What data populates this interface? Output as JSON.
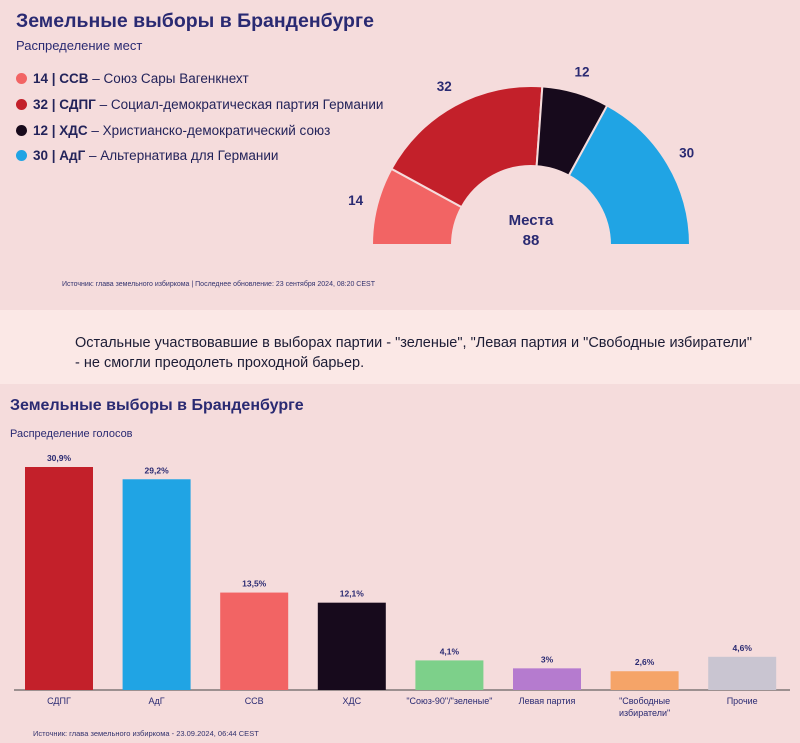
{
  "seats": {
    "title": "Земельные выборы в Бранденбурге",
    "subtitle": "Распределение мест",
    "center_label": "Места",
    "total": "88",
    "legend": [
      {
        "count": "14",
        "abbr": "ССВ",
        "name": "Союз Сары Вагенкнехт",
        "color": "#f26464"
      },
      {
        "count": "32",
        "abbr": "СДПГ",
        "name": "Социал-демократическая партия Германии",
        "color": "#c3202a"
      },
      {
        "count": "12",
        "abbr": "ХДС",
        "name": "Христианско-демократический союз",
        "color": "#170a1c"
      },
      {
        "count": "30",
        "abbr": "АдГ",
        "name": "Альтернатива для Германии",
        "color": "#20a4e4"
      }
    ],
    "source": "Источник: глава земельного избиркома | Последнее обновление: 23 сентября 2024, 08:20 CEST"
  },
  "note": "Остальные участвовавшие в выборах партии - \"зеленые\", \"Левая партия и \"Свободные избиратели\" - не смогли преодолеть проходной барьер.",
  "votes": {
    "title": "Земельные выборы в Бранденбурге",
    "subtitle": "Распределение голосов",
    "source": "Источник: глава земельного избиркома - 23.09.2024, 06:44 CEST"
  },
  "chart_data": [
    {
      "type": "pie",
      "variant": "half-donut (parliament)",
      "title": "Земельные выборы в Бранденбурге",
      "subtitle": "Распределение мест",
      "categories": [
        "ССВ",
        "СДПГ",
        "ХДС",
        "АдГ"
      ],
      "values": [
        14,
        32,
        12,
        30
      ],
      "labels": [
        "14",
        "32",
        "12",
        "30"
      ],
      "colors": [
        "#f26464",
        "#c3202a",
        "#170a1c",
        "#20a4e4"
      ],
      "center_text": [
        "Места",
        "88"
      ],
      "legend": "top-left"
    },
    {
      "type": "bar",
      "title": "Земельные выборы в Бранденбурге",
      "subtitle": "Распределение голосов",
      "categories": [
        "СДПГ",
        "АдГ",
        "ССВ",
        "ХДС",
        "\"Союз-90\"/\"зеленые\"",
        "Левая партия",
        "\"Свободные избиратели\"",
        "Прочие"
      ],
      "values": [
        30.9,
        29.2,
        13.5,
        12.1,
        4.1,
        3,
        2.6,
        4.6
      ],
      "labels": [
        "30,9%",
        "29,2%",
        "13,5%",
        "12,1%",
        "4,1%",
        "3%",
        "2,6%",
        "4,6%"
      ],
      "colors": [
        "#c3202a",
        "#20a4e4",
        "#f26464",
        "#170a1c",
        "#7dd08a",
        "#b57bcf",
        "#f5a468",
        "#c9c5d1"
      ],
      "ylim": [
        0,
        31
      ],
      "grid": false
    }
  ]
}
